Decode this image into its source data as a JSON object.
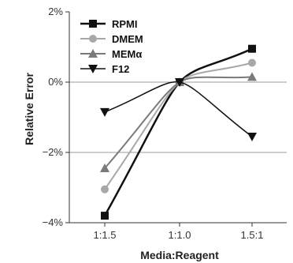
{
  "chart_data": {
    "type": "line",
    "xlabel": "Media:Reagent",
    "ylabel": "Relative Error",
    "categories": [
      "1:1.5",
      "1:1.0",
      "1.5:1"
    ],
    "ylim": [
      -4,
      2
    ],
    "y_ticks": [
      2,
      0,
      -2,
      -4
    ],
    "y_tick_labels": [
      "2%",
      "0%",
      "−2%",
      "−4%"
    ],
    "grid": "horizontal lines at 0% and −2%",
    "legend_position": "top-left",
    "series": [
      {
        "name": "RPMI",
        "marker": "square",
        "color": "#111111",
        "stroke": 2.5,
        "values": [
          -3.8,
          0.0,
          0.95
        ]
      },
      {
        "name": "DMEM",
        "marker": "circle",
        "color": "#a8a8a8",
        "stroke": 2,
        "values": [
          -3.05,
          0.0,
          0.55
        ]
      },
      {
        "name": "MEMα",
        "marker": "triangle-up",
        "color": "#7a7a7a",
        "stroke": 2,
        "values": [
          -2.45,
          0.0,
          0.15
        ]
      },
      {
        "name": "F12",
        "marker": "triangle-down",
        "color": "#111111",
        "stroke": 1.5,
        "values": [
          -0.85,
          0.0,
          -1.55
        ]
      }
    ]
  }
}
